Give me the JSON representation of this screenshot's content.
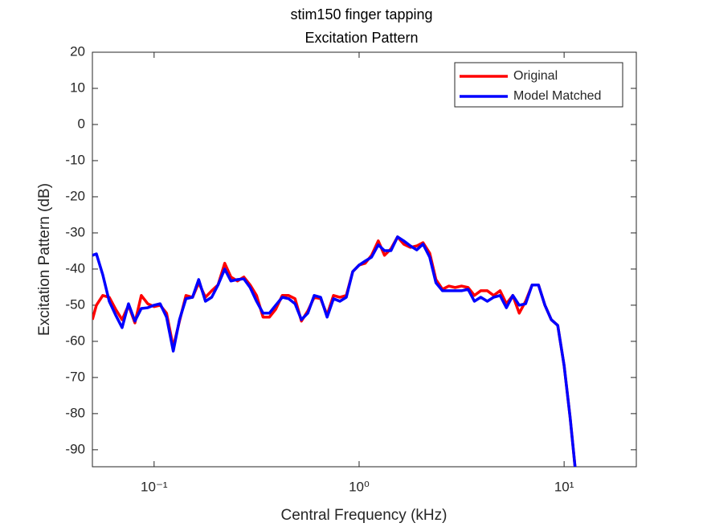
{
  "chart_data": {
    "type": "line",
    "title": [
      "stim150 finger tapping",
      "Excitation Pattern"
    ],
    "x_label": "Central Frequency (kHz)",
    "y_label": "Excitation Pattern (dB)",
    "x_scale": "log",
    "grid": false,
    "legend_position": "northeast",
    "xlim": [
      0.05,
      22.5
    ],
    "ylim": [
      -94.7,
      20
    ],
    "xticks": [
      {
        "value": 0.1,
        "label": "10⁻¹"
      },
      {
        "value": 1,
        "label": "10⁰"
      },
      {
        "value": 10,
        "label": "10¹"
      }
    ],
    "yticks": [
      -90,
      -80,
      -70,
      -60,
      -50,
      -40,
      -30,
      -20,
      -10,
      0,
      10,
      20
    ],
    "x": [
      0.05,
      0.0523,
      0.0562,
      0.0604,
      0.0649,
      0.0698,
      0.075,
      0.0806,
      0.0866,
      0.0931,
      0.1,
      0.107,
      0.115,
      0.124,
      0.133,
      0.143,
      0.154,
      0.165,
      0.178,
      0.191,
      0.205,
      0.221,
      0.237,
      0.255,
      0.274,
      0.294,
      0.316,
      0.34,
      0.365,
      0.392,
      0.422,
      0.453,
      0.487,
      0.523,
      0.562,
      0.604,
      0.649,
      0.698,
      0.75,
      0.806,
      0.866,
      0.931,
      1,
      1.07,
      1.15,
      1.24,
      1.33,
      1.43,
      1.54,
      1.65,
      1.78,
      1.91,
      2.05,
      2.21,
      2.37,
      2.55,
      2.74,
      2.94,
      3.16,
      3.4,
      3.65,
      3.92,
      4.22,
      4.53,
      4.87,
      5.23,
      5.62,
      6.04,
      6.49,
      6.98,
      7.5,
      8.06,
      8.66,
      9.31,
      10,
      10.7,
      11.5
    ],
    "series": [
      {
        "name": "Original",
        "color": "#ff0000",
        "values": [
          -54.0,
          -50.0,
          -47.3,
          -47.8,
          -51.1,
          -54.0,
          -50.0,
          -54.9,
          -47.3,
          -49.6,
          -50.4,
          -50.0,
          -52.2,
          -61.6,
          -54.4,
          -47.3,
          -47.8,
          -43.8,
          -47.8,
          -46.0,
          -44.4,
          -38.4,
          -42.2,
          -43.3,
          -42.2,
          -44.4,
          -47.3,
          -53.3,
          -53.3,
          -51.1,
          -47.3,
          -47.3,
          -48.2,
          -54.4,
          -51.6,
          -47.8,
          -48.2,
          -52.7,
          -47.3,
          -47.8,
          -47.3,
          -40.7,
          -38.9,
          -38.4,
          -36.2,
          -32.2,
          -36.2,
          -34.4,
          -31.1,
          -33.1,
          -34.0,
          -33.6,
          -32.7,
          -35.6,
          -42.9,
          -45.6,
          -44.7,
          -45.1,
          -44.7,
          -45.1,
          -47.3,
          -46.0,
          -46.0,
          -47.3,
          -46.0,
          -49.6,
          -47.3,
          -52.2,
          -48.9,
          -44.4,
          -44.4,
          -50.0,
          -54.0,
          -55.6,
          -66.7,
          -81.1,
          -98.9
        ]
      },
      {
        "name": "Model Matched",
        "color": "#0000ff",
        "values": [
          -36.2,
          -35.8,
          -41.6,
          -48.9,
          -52.7,
          -56.2,
          -49.6,
          -54.4,
          -50.9,
          -50.7,
          -50.0,
          -49.6,
          -53.3,
          -62.7,
          -54.0,
          -48.2,
          -47.8,
          -42.9,
          -48.9,
          -47.8,
          -44.4,
          -40.0,
          -43.3,
          -42.9,
          -42.7,
          -45.1,
          -48.9,
          -52.2,
          -52.2,
          -50.0,
          -47.8,
          -48.2,
          -49.6,
          -54.0,
          -52.2,
          -47.3,
          -47.8,
          -53.3,
          -48.2,
          -48.9,
          -47.8,
          -40.7,
          -38.9,
          -37.8,
          -36.7,
          -33.3,
          -34.9,
          -34.9,
          -31.1,
          -32.2,
          -33.6,
          -34.7,
          -33.1,
          -36.7,
          -43.8,
          -46.0,
          -46.0,
          -46.0,
          -46.0,
          -45.6,
          -48.9,
          -47.8,
          -48.9,
          -47.8,
          -47.3,
          -50.7,
          -47.3,
          -50.0,
          -49.6,
          -44.4,
          -44.4,
          -50.0,
          -54.0,
          -55.6,
          -66.7,
          -81.1,
          -98.9
        ]
      }
    ]
  }
}
